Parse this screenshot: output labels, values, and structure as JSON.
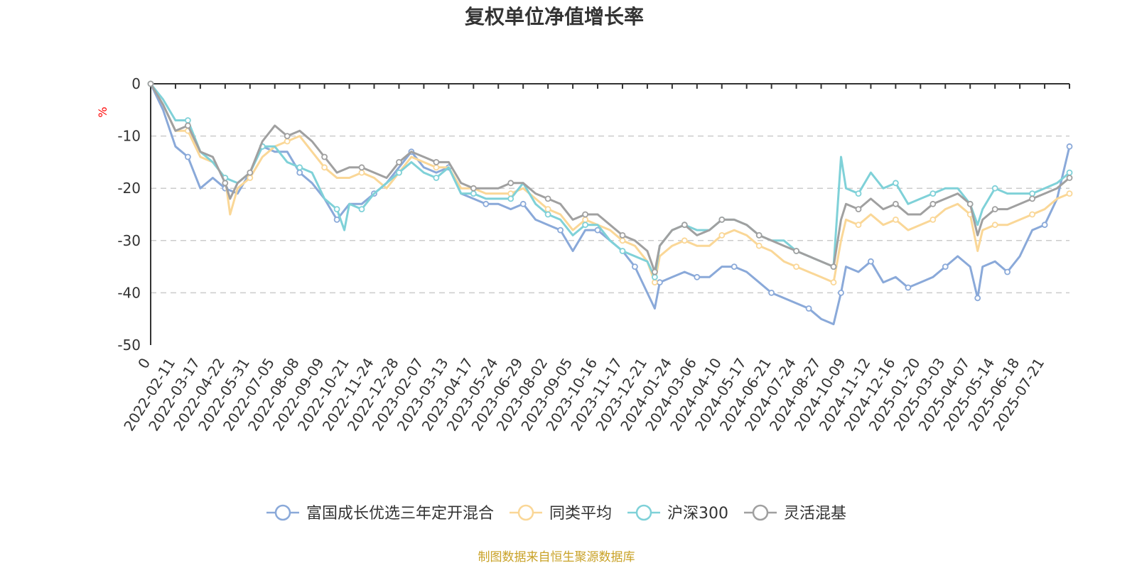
{
  "chart_data": {
    "type": "line",
    "title": "复权单位净值增长率",
    "ylabel": "%",
    "ylim": [
      -50,
      0
    ],
    "yticks": [
      0,
      -10,
      -20,
      -30,
      -40,
      -50
    ],
    "grid": "horizontal-dashed",
    "legend_position": "bottom-center",
    "x_labels": [
      "0",
      "2022-02-11",
      "2022-03-17",
      "2022-04-22",
      "2022-05-31",
      "2022-07-05",
      "2022-08-08",
      "2022-09-09",
      "2022-10-21",
      "2022-11-24",
      "2022-12-28",
      "2023-02-07",
      "2023-03-13",
      "2023-04-17",
      "2023-05-24",
      "2023-06-29",
      "2023-08-02",
      "2023-09-05",
      "2023-10-16",
      "2023-11-17",
      "2023-12-21",
      "2024-01-24",
      "2024-03-06",
      "2024-04-10",
      "2024-05-17",
      "2024-06-21",
      "2024-07-24",
      "2024-08-27",
      "2024-10-09",
      "2024-11-12",
      "2024-12-16",
      "2025-01-20",
      "2025-03-03",
      "2025-04-07",
      "2025-05-14",
      "2025-06-18",
      "2025-07-21"
    ],
    "x_start_index": 0,
    "x_end_index": 37,
    "series": [
      {
        "name": "富国成长优选三年定开混合",
        "color": "#8aa9d9",
        "points": [
          [
            0,
            0
          ],
          [
            0.5,
            -5
          ],
          [
            1,
            -12
          ],
          [
            1.5,
            -14
          ],
          [
            2,
            -20
          ],
          [
            2.5,
            -18
          ],
          [
            3,
            -20
          ],
          [
            3.5,
            -21
          ],
          [
            4,
            -17
          ],
          [
            4.5,
            -12
          ],
          [
            5,
            -13
          ],
          [
            5.5,
            -13
          ],
          [
            6,
            -17
          ],
          [
            6.5,
            -19
          ],
          [
            7,
            -22
          ],
          [
            7.5,
            -26
          ],
          [
            8,
            -23
          ],
          [
            8.5,
            -23
          ],
          [
            9,
            -21
          ],
          [
            9.5,
            -19
          ],
          [
            10,
            -16
          ],
          [
            10.5,
            -13
          ],
          [
            11,
            -16
          ],
          [
            11.5,
            -17
          ],
          [
            12,
            -16
          ],
          [
            12.5,
            -21
          ],
          [
            13,
            -22
          ],
          [
            13.5,
            -23
          ],
          [
            14,
            -23
          ],
          [
            14.5,
            -24
          ],
          [
            15,
            -23
          ],
          [
            15.5,
            -26
          ],
          [
            16,
            -27
          ],
          [
            16.5,
            -28
          ],
          [
            17,
            -32
          ],
          [
            17.5,
            -28
          ],
          [
            18,
            -28
          ],
          [
            18.5,
            -30
          ],
          [
            19,
            -32
          ],
          [
            19.5,
            -35
          ],
          [
            20,
            -40
          ],
          [
            20.3,
            -43
          ],
          [
            20.5,
            -38
          ],
          [
            21,
            -37
          ],
          [
            21.5,
            -36
          ],
          [
            22,
            -37
          ],
          [
            22.5,
            -37
          ],
          [
            23,
            -35
          ],
          [
            23.5,
            -35
          ],
          [
            24,
            -36
          ],
          [
            24.5,
            -38
          ],
          [
            25,
            -40
          ],
          [
            25.5,
            -41
          ],
          [
            26,
            -42
          ],
          [
            26.5,
            -43
          ],
          [
            27,
            -45
          ],
          [
            27.5,
            -46
          ],
          [
            27.8,
            -40
          ],
          [
            28,
            -35
          ],
          [
            28.5,
            -36
          ],
          [
            29,
            -34
          ],
          [
            29.5,
            -38
          ],
          [
            30,
            -37
          ],
          [
            30.5,
            -39
          ],
          [
            31,
            -38
          ],
          [
            31.5,
            -37
          ],
          [
            32,
            -35
          ],
          [
            32.5,
            -33
          ],
          [
            33,
            -35
          ],
          [
            33.3,
            -41
          ],
          [
            33.5,
            -35
          ],
          [
            34,
            -34
          ],
          [
            34.5,
            -36
          ],
          [
            35,
            -33
          ],
          [
            35.5,
            -28
          ],
          [
            36,
            -27
          ],
          [
            36.5,
            -22
          ],
          [
            37,
            -12
          ]
        ]
      },
      {
        "name": "同类平均",
        "color": "#fad797",
        "points": [
          [
            0,
            0
          ],
          [
            0.5,
            -4
          ],
          [
            1,
            -9
          ],
          [
            1.5,
            -9
          ],
          [
            2,
            -14
          ],
          [
            2.5,
            -15
          ],
          [
            3,
            -18
          ],
          [
            3.2,
            -25
          ],
          [
            3.5,
            -20
          ],
          [
            4,
            -18
          ],
          [
            4.5,
            -14
          ],
          [
            5,
            -12
          ],
          [
            5.5,
            -11
          ],
          [
            6,
            -10
          ],
          [
            6.5,
            -13
          ],
          [
            7,
            -16
          ],
          [
            7.5,
            -18
          ],
          [
            8,
            -18
          ],
          [
            8.5,
            -17
          ],
          [
            9,
            -18
          ],
          [
            9.5,
            -20
          ],
          [
            10,
            -17
          ],
          [
            10.5,
            -14
          ],
          [
            11,
            -15
          ],
          [
            11.5,
            -16
          ],
          [
            12,
            -16
          ],
          [
            12.5,
            -20
          ],
          [
            13,
            -20
          ],
          [
            13.5,
            -21
          ],
          [
            14,
            -21
          ],
          [
            14.5,
            -21
          ],
          [
            15,
            -20
          ],
          [
            15.5,
            -22
          ],
          [
            16,
            -24
          ],
          [
            16.5,
            -25
          ],
          [
            17,
            -28
          ],
          [
            17.5,
            -26
          ],
          [
            18,
            -27
          ],
          [
            18.5,
            -28
          ],
          [
            19,
            -30
          ],
          [
            19.5,
            -31
          ],
          [
            20,
            -34
          ],
          [
            20.3,
            -38
          ],
          [
            20.5,
            -33
          ],
          [
            21,
            -31
          ],
          [
            21.5,
            -30
          ],
          [
            22,
            -31
          ],
          [
            22.5,
            -31
          ],
          [
            23,
            -29
          ],
          [
            23.5,
            -28
          ],
          [
            24,
            -29
          ],
          [
            24.5,
            -31
          ],
          [
            25,
            -32
          ],
          [
            25.5,
            -34
          ],
          [
            26,
            -35
          ],
          [
            26.5,
            -36
          ],
          [
            27,
            -37
          ],
          [
            27.5,
            -38
          ],
          [
            27.8,
            -30
          ],
          [
            28,
            -26
          ],
          [
            28.5,
            -27
          ],
          [
            29,
            -25
          ],
          [
            29.5,
            -27
          ],
          [
            30,
            -26
          ],
          [
            30.5,
            -28
          ],
          [
            31,
            -27
          ],
          [
            31.5,
            -26
          ],
          [
            32,
            -24
          ],
          [
            32.5,
            -23
          ],
          [
            33,
            -25
          ],
          [
            33.3,
            -32
          ],
          [
            33.5,
            -28
          ],
          [
            34,
            -27
          ],
          [
            34.5,
            -27
          ],
          [
            35,
            -26
          ],
          [
            35.5,
            -25
          ],
          [
            36,
            -24
          ],
          [
            36.5,
            -22
          ],
          [
            37,
            -21
          ]
        ]
      },
      {
        "name": "沪深300",
        "color": "#7fd1d8",
        "points": [
          [
            0,
            0
          ],
          [
            0.5,
            -3
          ],
          [
            1,
            -7
          ],
          [
            1.5,
            -7
          ],
          [
            2,
            -13
          ],
          [
            2.5,
            -15
          ],
          [
            3,
            -18
          ],
          [
            3.5,
            -19
          ],
          [
            4,
            -17
          ],
          [
            4.5,
            -12
          ],
          [
            5,
            -12
          ],
          [
            5.5,
            -15
          ],
          [
            6,
            -16
          ],
          [
            6.5,
            -17
          ],
          [
            7,
            -22
          ],
          [
            7.5,
            -24
          ],
          [
            7.8,
            -28
          ],
          [
            8,
            -23
          ],
          [
            8.5,
            -24
          ],
          [
            9,
            -21
          ],
          [
            9.5,
            -19
          ],
          [
            10,
            -17
          ],
          [
            10.5,
            -15
          ],
          [
            11,
            -17
          ],
          [
            11.5,
            -18
          ],
          [
            12,
            -16
          ],
          [
            12.5,
            -21
          ],
          [
            13,
            -21
          ],
          [
            13.5,
            -22
          ],
          [
            14,
            -22
          ],
          [
            14.5,
            -22
          ],
          [
            15,
            -19
          ],
          [
            15.5,
            -23
          ],
          [
            16,
            -25
          ],
          [
            16.5,
            -26
          ],
          [
            17,
            -29
          ],
          [
            17.5,
            -27
          ],
          [
            18,
            -27
          ],
          [
            18.5,
            -30
          ],
          [
            19,
            -32
          ],
          [
            19.5,
            -33
          ],
          [
            20,
            -34
          ],
          [
            20.3,
            -37
          ],
          [
            20.5,
            -31
          ],
          [
            21,
            -28
          ],
          [
            21.5,
            -27
          ],
          [
            22,
            -28
          ],
          [
            22.5,
            -28
          ],
          [
            23,
            -26
          ],
          [
            23.5,
            -26
          ],
          [
            24,
            -27
          ],
          [
            24.5,
            -29
          ],
          [
            25,
            -30
          ],
          [
            25.5,
            -30
          ],
          [
            26,
            -32
          ],
          [
            26.5,
            -33
          ],
          [
            27,
            -34
          ],
          [
            27.5,
            -35
          ],
          [
            27.8,
            -14
          ],
          [
            28,
            -20
          ],
          [
            28.5,
            -21
          ],
          [
            29,
            -17
          ],
          [
            29.5,
            -20
          ],
          [
            30,
            -19
          ],
          [
            30.5,
            -23
          ],
          [
            31,
            -22
          ],
          [
            31.5,
            -21
          ],
          [
            32,
            -20
          ],
          [
            32.5,
            -20
          ],
          [
            33,
            -23
          ],
          [
            33.3,
            -27
          ],
          [
            33.5,
            -24
          ],
          [
            34,
            -20
          ],
          [
            34.5,
            -21
          ],
          [
            35,
            -21
          ],
          [
            35.5,
            -21
          ],
          [
            36,
            -20
          ],
          [
            36.5,
            -19
          ],
          [
            37,
            -17
          ]
        ]
      },
      {
        "name": "灵活混基",
        "color": "#a0a0a0",
        "points": [
          [
            0,
            0
          ],
          [
            0.5,
            -4
          ],
          [
            1,
            -9
          ],
          [
            1.5,
            -8
          ],
          [
            2,
            -13
          ],
          [
            2.5,
            -14
          ],
          [
            3,
            -19
          ],
          [
            3.2,
            -22
          ],
          [
            3.5,
            -19
          ],
          [
            4,
            -17
          ],
          [
            4.5,
            -11
          ],
          [
            5,
            -8
          ],
          [
            5.5,
            -10
          ],
          [
            6,
            -9
          ],
          [
            6.5,
            -11
          ],
          [
            7,
            -14
          ],
          [
            7.5,
            -17
          ],
          [
            8,
            -16
          ],
          [
            8.5,
            -16
          ],
          [
            9,
            -17
          ],
          [
            9.5,
            -18
          ],
          [
            10,
            -15
          ],
          [
            10.5,
            -13
          ],
          [
            11,
            -14
          ],
          [
            11.5,
            -15
          ],
          [
            12,
            -15
          ],
          [
            12.5,
            -19
          ],
          [
            13,
            -20
          ],
          [
            13.5,
            -20
          ],
          [
            14,
            -20
          ],
          [
            14.5,
            -19
          ],
          [
            15,
            -19
          ],
          [
            15.5,
            -21
          ],
          [
            16,
            -22
          ],
          [
            16.5,
            -23
          ],
          [
            17,
            -26
          ],
          [
            17.5,
            -25
          ],
          [
            18,
            -25
          ],
          [
            18.5,
            -27
          ],
          [
            19,
            -29
          ],
          [
            19.5,
            -30
          ],
          [
            20,
            -32
          ],
          [
            20.3,
            -36
          ],
          [
            20.5,
            -31
          ],
          [
            21,
            -28
          ],
          [
            21.5,
            -27
          ],
          [
            22,
            -29
          ],
          [
            22.5,
            -28
          ],
          [
            23,
            -26
          ],
          [
            23.5,
            -26
          ],
          [
            24,
            -27
          ],
          [
            24.5,
            -29
          ],
          [
            25,
            -30
          ],
          [
            25.5,
            -31
          ],
          [
            26,
            -32
          ],
          [
            26.5,
            -33
          ],
          [
            27,
            -34
          ],
          [
            27.5,
            -35
          ],
          [
            27.8,
            -26
          ],
          [
            28,
            -23
          ],
          [
            28.5,
            -24
          ],
          [
            29,
            -22
          ],
          [
            29.5,
            -24
          ],
          [
            30,
            -23
          ],
          [
            30.5,
            -25
          ],
          [
            31,
            -25
          ],
          [
            31.5,
            -23
          ],
          [
            32,
            -22
          ],
          [
            32.5,
            -21
          ],
          [
            33,
            -23
          ],
          [
            33.3,
            -29
          ],
          [
            33.5,
            -26
          ],
          [
            34,
            -24
          ],
          [
            34.5,
            -24
          ],
          [
            35,
            -23
          ],
          [
            35.5,
            -22
          ],
          [
            36,
            -21
          ],
          [
            36.5,
            -20
          ],
          [
            37,
            -18
          ]
        ]
      }
    ]
  },
  "source_text": "制图数据来自恒生聚源数据库"
}
